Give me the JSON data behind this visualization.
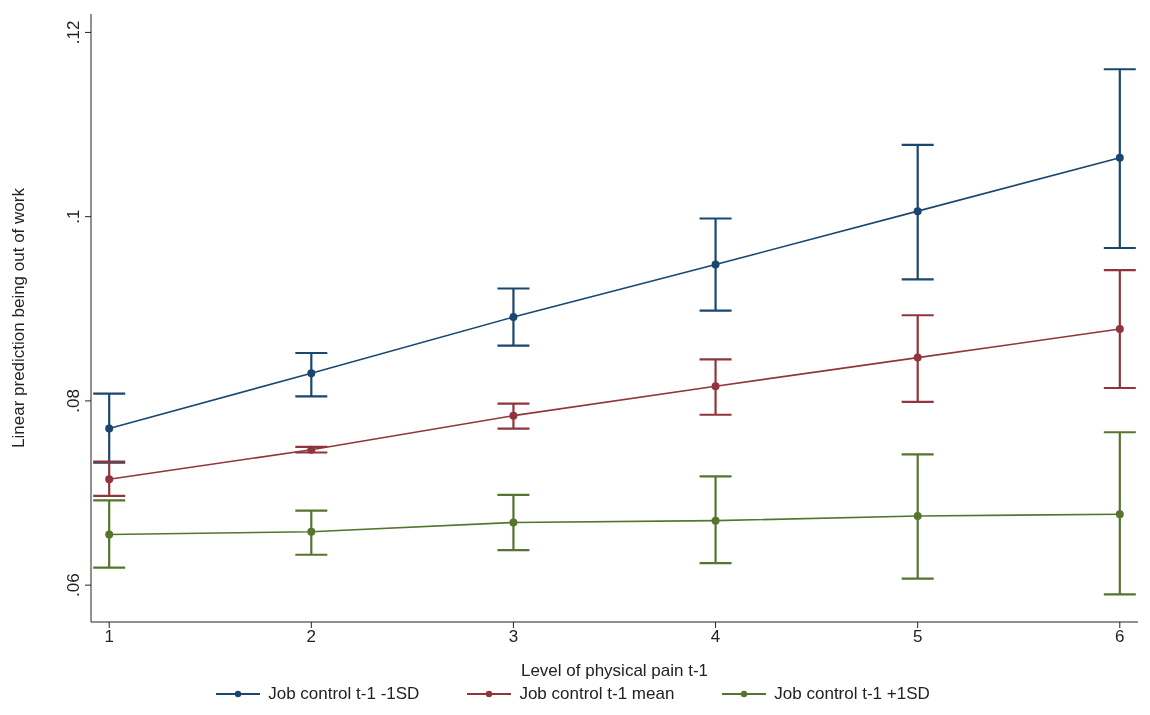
{
  "chart_data": {
    "type": "line",
    "xlabel": "Level of physical pain t-1",
    "ylabel": "Linear prediction being out of work",
    "x": [
      1,
      2,
      3,
      4,
      5,
      6
    ],
    "series": [
      {
        "name": "Job control t-1 -1SD",
        "color": "#1a476f",
        "values": [
          0.077,
          0.083,
          0.0891,
          0.0948,
          0.1006,
          0.1064
        ],
        "errors": [
          [
            0.0733,
            0.0808
          ],
          [
            0.0805,
            0.0852
          ],
          [
            0.086,
            0.0922
          ],
          [
            0.0898,
            0.0998
          ],
          [
            0.0932,
            0.1078
          ],
          [
            0.0966,
            0.116
          ]
        ]
      },
      {
        "name": "Job control t-1 mean",
        "color": "#90353b",
        "values": [
          0.0715,
          0.0747,
          0.0784,
          0.0816,
          0.0847,
          0.0878
        ],
        "errors": [
          [
            0.0697,
            0.0734
          ],
          [
            0.0744,
            0.075
          ],
          [
            0.077,
            0.0797
          ],
          [
            0.0785,
            0.0845
          ],
          [
            0.0799,
            0.0893
          ],
          [
            0.0814,
            0.0942
          ]
        ]
      },
      {
        "name": "Job control t-1 +1SD",
        "color": "#55752f",
        "values": [
          0.0655,
          0.0658,
          0.0668,
          0.067,
          0.0675,
          0.0677
        ],
        "errors": [
          [
            0.0619,
            0.0692
          ],
          [
            0.0633,
            0.0681
          ],
          [
            0.0638,
            0.0698
          ],
          [
            0.0624,
            0.0718
          ],
          [
            0.0607,
            0.0742
          ],
          [
            0.059,
            0.0766
          ]
        ]
      }
    ],
    "xlim": [
      0.91,
      6.09
    ],
    "xticks": [
      1,
      2,
      3,
      4,
      5,
      6
    ],
    "ylim": [
      0.056,
      0.122
    ],
    "yticks": [
      {
        "value": 0.06,
        "label": ".06"
      },
      {
        "value": 0.08,
        "label": ".08"
      },
      {
        "value": 0.1,
        "label": ".1"
      },
      {
        "value": 0.12,
        "label": ".12"
      }
    ],
    "grid": false,
    "legend": "bottom",
    "marker": "circle",
    "line_style": "solid"
  }
}
